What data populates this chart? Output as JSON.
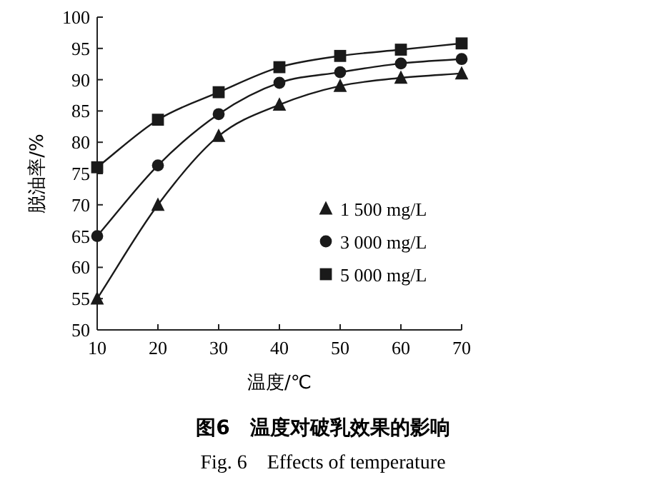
{
  "chart_data": {
    "type": "line",
    "title": "图6　温度对破乳效果的影响",
    "subtitle": "Fig. 6　Effects of temperature",
    "xlabel": "温度/℃",
    "ylabel": "脱油率/%",
    "x": [
      10,
      20,
      30,
      40,
      50,
      60,
      70
    ],
    "xlim": [
      10,
      70
    ],
    "xticks": [
      10,
      20,
      30,
      40,
      50,
      60,
      70
    ],
    "ylim": [
      50,
      100
    ],
    "yticks": [
      50,
      55,
      60,
      65,
      70,
      75,
      80,
      85,
      90,
      95,
      100
    ],
    "grid": false,
    "legend": "right",
    "line_style": "solid",
    "series": [
      {
        "name": "1 500 mg/L",
        "color": "#1a1a1a",
        "marker": "triangle",
        "values": [
          55,
          70,
          81,
          86,
          89,
          90.3,
          91
        ]
      },
      {
        "name": "3 000 mg/L",
        "color": "#1a1a1a",
        "marker": "circle",
        "values": [
          65,
          76.3,
          84.5,
          89.5,
          91.2,
          92.6,
          93.3
        ]
      },
      {
        "name": "5 000 mg/L",
        "color": "#1a1a1a",
        "marker": "square",
        "values": [
          76,
          83.6,
          88,
          92,
          93.8,
          94.8,
          95.8
        ]
      }
    ]
  }
}
